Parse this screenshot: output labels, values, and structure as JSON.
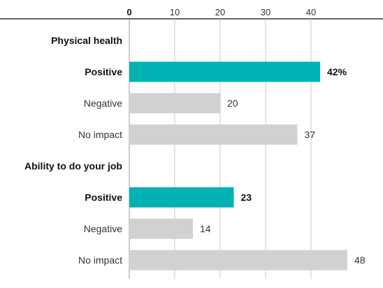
{
  "chart_data": {
    "type": "bar",
    "orientation": "horizontal",
    "xlim": [
      0,
      50
    ],
    "x_ticks": [
      "0",
      "10",
      "20",
      "30",
      "40"
    ],
    "grid": true,
    "groups": [
      {
        "label": "Physical health",
        "bars": [
          {
            "label": "Positive",
            "value": 42,
            "value_label": "42%",
            "highlight": true
          },
          {
            "label": "Negative",
            "value": 20,
            "value_label": "20",
            "highlight": false
          },
          {
            "label": "No impact",
            "value": 37,
            "value_label": "37",
            "highlight": false
          }
        ]
      },
      {
        "label": "Ability to do your job",
        "bars": [
          {
            "label": "Positive",
            "value": 23,
            "value_label": "23",
            "highlight": true
          },
          {
            "label": "Negative",
            "value": 14,
            "value_label": "14",
            "highlight": false
          },
          {
            "label": "No impact",
            "value": 48,
            "value_label": "48",
            "highlight": false
          }
        ]
      }
    ],
    "colors": {
      "highlight": "#00b2b4",
      "default": "#d1d1cf",
      "grid": "#c9c9c9",
      "axis": "#333333"
    }
  }
}
